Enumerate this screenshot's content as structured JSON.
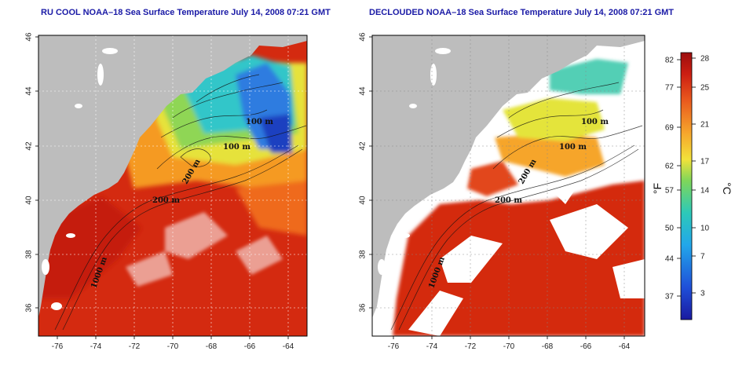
{
  "titles": {
    "left": "RU COOL NOAA–18 Sea Surface Temperature July 14, 2008 07:21 GMT",
    "right": "DECLOUDED NOAA–18 Sea Surface Temperature July 14, 2008 07:21 GMT"
  },
  "axes": {
    "x_ticks": [
      "-76",
      "-74",
      "-72",
      "-70",
      "-68",
      "-66",
      "-64"
    ],
    "y_ticks": [
      "46",
      "44",
      "42",
      "40",
      "38",
      "36"
    ]
  },
  "contour_labels": [
    "100 m",
    "100 m",
    "200 m",
    "200 m",
    "1000 m"
  ],
  "colorbar": {
    "fahrenheit_ticks": [
      "82",
      "77",
      "69",
      "62",
      "57",
      "50",
      "44",
      "37"
    ],
    "celsius_ticks": [
      "28",
      "25",
      "21",
      "17",
      "14",
      "10",
      "7",
      "3"
    ],
    "fahrenheit_unit": "°F",
    "celsius_unit": "°C"
  },
  "colors": {
    "land": "#bdbdbd",
    "cloud": "#ffffff",
    "warm": "#d42a10",
    "title": "#1a1aa6"
  }
}
